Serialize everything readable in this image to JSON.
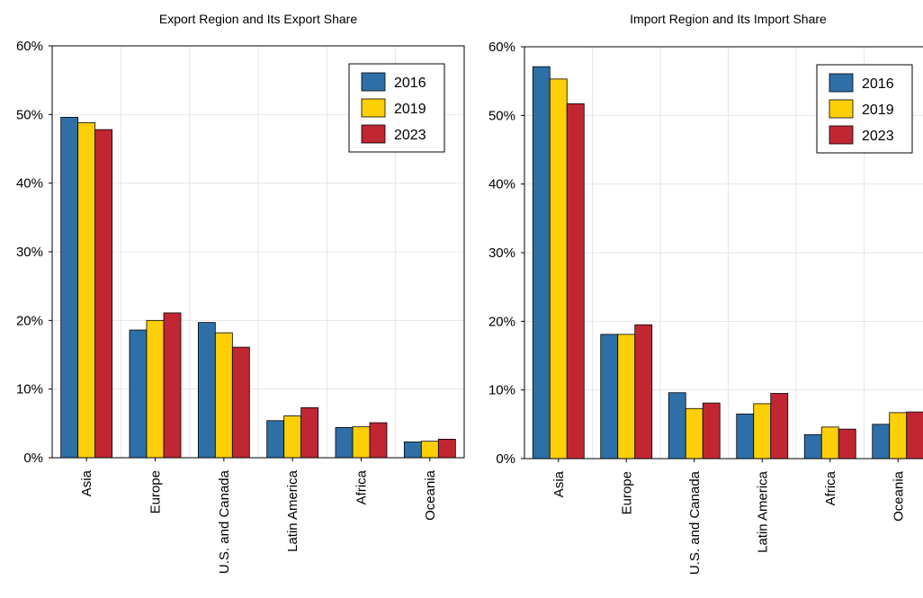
{
  "chart_data": [
    {
      "type": "bar",
      "title": "Export Region and Its Export Share",
      "xlabel": "",
      "ylabel": "",
      "categories": [
        "Asia",
        "Europe",
        "U.S. and Canada",
        "Latin America",
        "Africa",
        "Oceania"
      ],
      "series": [
        {
          "name": "2016",
          "values": [
            49.6,
            18.6,
            19.7,
            5.4,
            4.4,
            2.3
          ]
        },
        {
          "name": "2019",
          "values": [
            48.8,
            20.0,
            18.2,
            6.1,
            4.5,
            2.4
          ]
        },
        {
          "name": "2023",
          "values": [
            47.8,
            21.1,
            16.1,
            7.3,
            5.1,
            2.7
          ]
        }
      ],
      "ylim": [
        0,
        60
      ],
      "yticks": [
        "0%",
        "10%",
        "20%",
        "30%",
        "40%",
        "50%",
        "60%"
      ],
      "grid": true,
      "legend_position": "top-right"
    },
    {
      "type": "bar",
      "title": "Import Region and Its Import Share",
      "xlabel": "",
      "ylabel": "",
      "categories": [
        "Asia",
        "Europe",
        "U.S. and Canada",
        "Latin America",
        "Africa",
        "Oceania"
      ],
      "series": [
        {
          "name": "2016",
          "values": [
            57.1,
            18.1,
            9.6,
            6.5,
            3.5,
            5.0
          ]
        },
        {
          "name": "2019",
          "values": [
            55.3,
            18.1,
            7.3,
            8.0,
            4.6,
            6.7
          ]
        },
        {
          "name": "2023",
          "values": [
            51.7,
            19.5,
            8.1,
            9.5,
            4.3,
            6.8
          ]
        }
      ],
      "ylim": [
        0,
        60
      ],
      "yticks": [
        "0%",
        "10%",
        "20%",
        "30%",
        "40%",
        "50%",
        "60%"
      ],
      "grid": true,
      "legend_position": "top-right"
    }
  ],
  "colors": {
    "2016": "#2e6fa7",
    "2019": "#fccf06",
    "2023": "#c02733"
  }
}
